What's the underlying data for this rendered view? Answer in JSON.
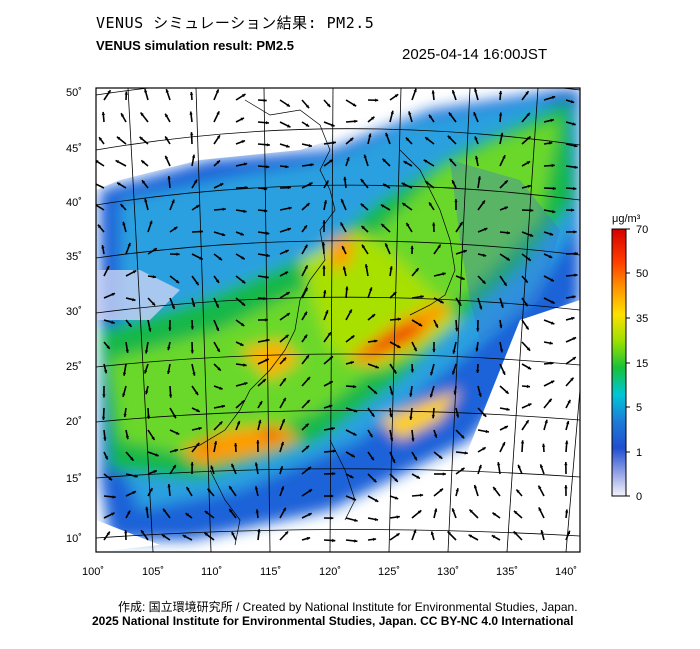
{
  "header": {
    "title_jp": "VENUS シミュレーション結果: PM2.5",
    "title_en": "VENUS simulation result: PM2.5",
    "timestamp": "2025-04-14 16:00JST"
  },
  "map": {
    "lon_ticks": [
      "100˚",
      "105˚",
      "110˚",
      "115˚",
      "120˚",
      "125˚",
      "130˚",
      "135˚",
      "140˚"
    ],
    "lat_ticks": [
      "50˚",
      "45˚",
      "40˚",
      "35˚",
      "30˚",
      "25˚",
      "20˚",
      "15˚",
      "10˚"
    ],
    "layer": "PM2.5 concentration with wind vectors"
  },
  "colorbar": {
    "unit": "μg/m³",
    "labels": [
      "70",
      "50",
      "35",
      "15",
      "5",
      "1",
      "0"
    ],
    "colors": [
      "#d40000",
      "#ff7a00",
      "#ffd800",
      "#7be000",
      "#17c23a",
      "#00c6d6",
      "#1d7bd8",
      "#1e4fd0",
      "#9aa8e8",
      "#f2f2f8"
    ]
  },
  "footer": {
    "credit": "作成: 国立環境研究所 / Created by National Institute for Environmental Studies, Japan.",
    "copyright": "2025 National Institute for Environmental Studies, Japan. CC BY-NC 4.0 International"
  }
}
